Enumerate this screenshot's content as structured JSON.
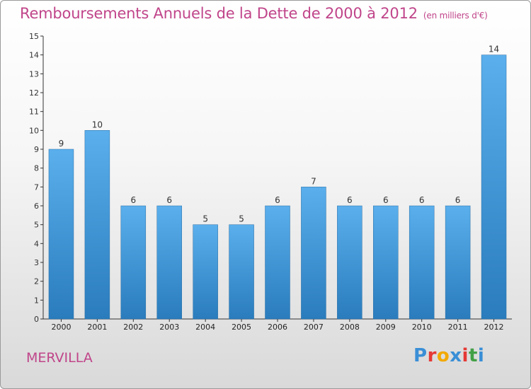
{
  "title": {
    "main": "Remboursements Annuels de la Dette de 2000 à 2012",
    "unit": "(en milliers d'€)"
  },
  "town": "MERVILLA",
  "logo": {
    "text": "Proxiti",
    "colors": [
      "#3a8fd6",
      "#e53935",
      "#f2a900",
      "#3a8fd6",
      "#e53935",
      "#43a047",
      "#3a8fd6"
    ]
  },
  "chart_data": {
    "type": "bar",
    "categories": [
      "2000",
      "2001",
      "2002",
      "2003",
      "2004",
      "2005",
      "2006",
      "2007",
      "2008",
      "2009",
      "2010",
      "2011",
      "2012"
    ],
    "values": [
      9,
      10,
      6,
      6,
      5,
      5,
      6,
      7,
      6,
      6,
      6,
      6,
      14
    ],
    "ylim": [
      0,
      15
    ],
    "yticks": [
      0,
      1,
      2,
      3,
      4,
      5,
      6,
      7,
      8,
      9,
      10,
      11,
      12,
      13,
      14,
      15
    ],
    "bar_color_top": "#5aafec",
    "bar_color_bottom": "#2a7cbc",
    "title_color": "#c0458a"
  }
}
